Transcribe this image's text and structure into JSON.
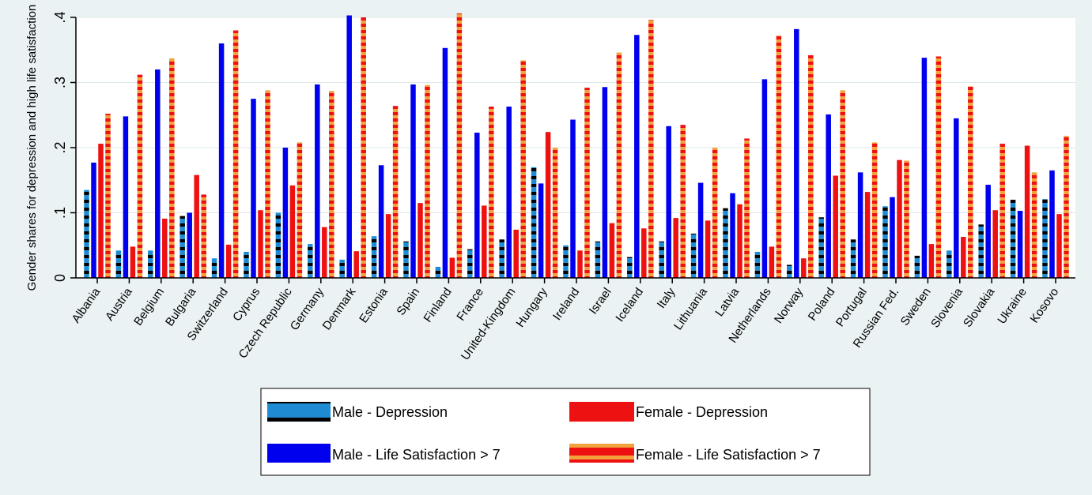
{
  "chart_data": {
    "type": "bar",
    "title": "",
    "xlabel": "",
    "ylabel": "Gender shares for depression and high life satisfaction",
    "ylim": [
      0,
      0.4
    ],
    "yticks": [
      0,
      0.1,
      0.2,
      0.3,
      0.4
    ],
    "ytick_labels": [
      "0",
      ".1",
      ".2",
      ".3",
      ".4"
    ],
    "grid": true,
    "legend_position": "bottom",
    "categories": [
      "Albania",
      "Austria",
      "Belgium",
      "Bulgaria",
      "Switzerland",
      "Cyprus",
      "Czech Republic",
      "Germany",
      "Denmark",
      "Estonia",
      "Spain",
      "Finland",
      "France",
      "United-Kingdom",
      "Hungary",
      "Ireland",
      "Israel",
      "Iceland",
      "Italy",
      "Lithuania",
      "Latvia",
      "Netherlands",
      "Norway",
      "Poland",
      "Portugal",
      "Russian Fed.",
      "Sweden",
      "Slovenia",
      "Slovakia",
      "Ukraine",
      "Kosovo"
    ],
    "series": [
      {
        "name": "Male - Depression",
        "color": "#1e8bd2",
        "stripe": "#000000",
        "values": [
          0.135,
          0.042,
          0.042,
          0.095,
          0.03,
          0.04,
          0.1,
          0.052,
          0.028,
          0.064,
          0.056,
          0.017,
          0.044,
          0.059,
          0.17,
          0.05,
          0.056,
          0.032,
          0.056,
          0.068,
          0.107,
          0.04,
          0.02,
          0.093,
          0.059,
          0.11,
          0.034,
          0.042,
          0.082,
          0.12,
          0.121
        ]
      },
      {
        "name": "Male - Life Satisfaction > 7",
        "color": "#0000ee",
        "stripe": null,
        "values": [
          0.177,
          0.248,
          0.32,
          0.1,
          0.36,
          0.275,
          0.2,
          0.297,
          0.403,
          0.173,
          0.297,
          0.353,
          0.223,
          0.263,
          0.145,
          0.243,
          0.293,
          0.373,
          0.233,
          0.146,
          0.13,
          0.305,
          0.382,
          0.251,
          0.162,
          0.124,
          0.338,
          0.245,
          0.143,
          0.103,
          0.165
        ]
      },
      {
        "name": "Female - Depression",
        "color": "#ee1111",
        "stripe": null,
        "values": [
          0.206,
          0.048,
          0.091,
          0.158,
          0.051,
          0.104,
          0.142,
          0.078,
          0.041,
          0.098,
          0.115,
          0.031,
          0.111,
          0.074,
          0.224,
          0.042,
          0.084,
          0.076,
          0.092,
          0.088,
          0.113,
          0.048,
          0.03,
          0.157,
          0.132,
          0.181,
          0.052,
          0.063,
          0.104,
          0.203,
          0.098
        ]
      },
      {
        "name": "Female - Life Satisfaction > 7",
        "color": "#ee1111",
        "stripe": "#f2a23c",
        "values": [
          0.252,
          0.312,
          0.337,
          0.128,
          0.38,
          0.288,
          0.208,
          0.287,
          0.4,
          0.264,
          0.296,
          0.406,
          0.263,
          0.334,
          0.2,
          0.292,
          0.346,
          0.396,
          0.235,
          0.2,
          0.214,
          0.372,
          0.342,
          0.288,
          0.208,
          0.18,
          0.34,
          0.294,
          0.206,
          0.162,
          0.218
        ]
      }
    ]
  },
  "legend": {
    "items": [
      {
        "label": "Male - Depression",
        "series_index": 0
      },
      {
        "label": "Female - Depression",
        "series_index": 2
      },
      {
        "label": "Male - Life Satisfaction > 7",
        "series_index": 1
      },
      {
        "label": "Female - Life Satisfaction > 7",
        "series_index": 3
      }
    ]
  }
}
